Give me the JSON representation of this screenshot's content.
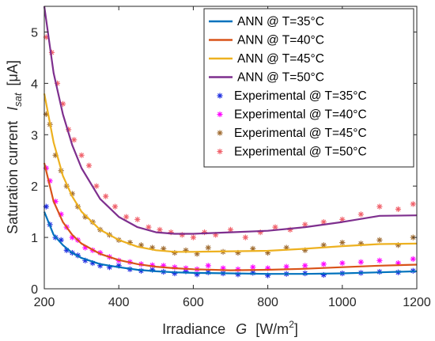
{
  "chart_data": {
    "type": "line",
    "xlabel": {
      "text": "Irradiance",
      "var": "G",
      "unit_pre": "[W/m",
      "unit_sup": "2",
      "unit_post": "]"
    },
    "ylabel": {
      "text": "Saturation current",
      "var": "I",
      "sub": "sat",
      "unit": "[μA]"
    },
    "xlim": [
      200,
      1200
    ],
    "ylim": [
      0,
      5.5
    ],
    "xticks": [
      "200",
      "400",
      "600",
      "800",
      "1000",
      "1200"
    ],
    "yticks": [
      "0",
      "1",
      "2",
      "3",
      "4",
      "5"
    ],
    "grid": false,
    "legend_position": "top-right",
    "series": [
      {
        "name": "ANN @ T=35°C",
        "kind": "line",
        "color": "#0072BD",
        "x": [
          200,
          225,
          250,
          275,
          300,
          350,
          400,
          450,
          500,
          550,
          600,
          700,
          800,
          900,
          1000,
          1100,
          1200
        ],
        "y": [
          1.5,
          1.05,
          0.85,
          0.7,
          0.6,
          0.48,
          0.42,
          0.37,
          0.34,
          0.32,
          0.31,
          0.3,
          0.29,
          0.29,
          0.3,
          0.32,
          0.34
        ]
      },
      {
        "name": "ANN @ T=40°C",
        "kind": "line",
        "color": "#D95319",
        "x": [
          200,
          225,
          250,
          275,
          300,
          350,
          400,
          450,
          500,
          550,
          600,
          700,
          800,
          900,
          1000,
          1100,
          1200
        ],
        "y": [
          2.45,
          1.7,
          1.3,
          1.05,
          0.88,
          0.68,
          0.56,
          0.48,
          0.43,
          0.4,
          0.38,
          0.36,
          0.37,
          0.39,
          0.42,
          0.45,
          0.47
        ]
      },
      {
        "name": "ANN @ T=45°C",
        "kind": "line",
        "color": "#EDB120",
        "x": [
          200,
          225,
          250,
          275,
          300,
          350,
          400,
          450,
          500,
          550,
          600,
          700,
          800,
          900,
          1000,
          1100,
          1200
        ],
        "y": [
          3.8,
          2.85,
          2.2,
          1.8,
          1.5,
          1.15,
          0.95,
          0.82,
          0.75,
          0.72,
          0.72,
          0.73,
          0.74,
          0.78,
          0.83,
          0.87,
          0.88
        ]
      },
      {
        "name": "ANN @ T=50°C",
        "kind": "line",
        "color": "#7E2F8E",
        "x": [
          200,
          225,
          250,
          275,
          300,
          350,
          400,
          450,
          500,
          550,
          600,
          700,
          800,
          900,
          1000,
          1100,
          1200
        ],
        "y": [
          5.5,
          4.2,
          3.4,
          2.8,
          2.35,
          1.75,
          1.4,
          1.2,
          1.1,
          1.07,
          1.07,
          1.1,
          1.13,
          1.2,
          1.3,
          1.42,
          1.43
        ]
      },
      {
        "name": "Experimental @ T=35°C",
        "kind": "scatter",
        "color": "#1A2BE0",
        "x": [
          205,
          215,
          230,
          245,
          260,
          275,
          290,
          310,
          330,
          350,
          375,
          400,
          430,
          460,
          490,
          520,
          550,
          580,
          610,
          640,
          680,
          720,
          760,
          800,
          850,
          900,
          950,
          1000,
          1050,
          1100,
          1150,
          1190
        ],
        "y": [
          1.6,
          1.25,
          1.0,
          0.95,
          0.75,
          0.7,
          0.65,
          0.55,
          0.5,
          0.45,
          0.42,
          0.45,
          0.38,
          0.35,
          0.37,
          0.33,
          0.3,
          0.34,
          0.28,
          0.32,
          0.3,
          0.28,
          0.31,
          0.26,
          0.29,
          0.3,
          0.27,
          0.3,
          0.31,
          0.33,
          0.32,
          0.35
        ]
      },
      {
        "name": "Experimental @ T=40°C",
        "kind": "scatter",
        "color": "#FF00FF",
        "x": [
          205,
          215,
          230,
          245,
          260,
          275,
          290,
          310,
          330,
          350,
          375,
          400,
          430,
          460,
          490,
          520,
          550,
          580,
          610,
          640,
          680,
          720,
          760,
          800,
          850,
          900,
          950,
          1000,
          1050,
          1100,
          1150,
          1190
        ],
        "y": [
          2.35,
          2.1,
          1.7,
          1.45,
          1.2,
          1.0,
          0.95,
          0.8,
          0.75,
          0.7,
          0.62,
          0.55,
          0.52,
          0.48,
          0.46,
          0.45,
          0.42,
          0.4,
          0.38,
          0.45,
          0.4,
          0.38,
          0.42,
          0.4,
          0.43,
          0.45,
          0.48,
          0.5,
          0.52,
          0.55,
          0.5,
          0.58
        ]
      },
      {
        "name": "Experimental @ T=45°C",
        "kind": "scatter",
        "color": "#9E6A2E",
        "x": [
          205,
          215,
          230,
          245,
          260,
          275,
          290,
          310,
          330,
          350,
          375,
          400,
          430,
          460,
          490,
          520,
          550,
          580,
          610,
          640,
          680,
          720,
          760,
          800,
          850,
          900,
          950,
          1000,
          1050,
          1100,
          1150,
          1190
        ],
        "y": [
          3.4,
          3.2,
          2.6,
          2.3,
          2.0,
          1.85,
          1.6,
          1.4,
          1.3,
          1.15,
          1.05,
          0.95,
          0.9,
          0.85,
          0.8,
          0.78,
          0.7,
          0.75,
          0.68,
          0.8,
          0.72,
          0.7,
          0.78,
          0.7,
          0.8,
          0.75,
          0.85,
          0.9,
          0.88,
          0.95,
          0.85,
          1.0
        ]
      },
      {
        "name": "Experimental @ T=50°C",
        "kind": "scatter",
        "color": "#F0606A",
        "x": [
          205,
          220,
          235,
          250,
          265,
          280,
          300,
          320,
          340,
          365,
          390,
          420,
          450,
          480,
          510,
          540,
          570,
          600,
          630,
          660,
          700,
          740,
          780,
          820,
          860,
          900,
          950,
          1000,
          1050,
          1100,
          1150,
          1190
        ],
        "y": [
          4.9,
          4.6,
          4.0,
          3.6,
          3.1,
          2.9,
          2.6,
          2.4,
          2.0,
          1.8,
          1.6,
          1.4,
          1.35,
          1.2,
          1.15,
          1.1,
          1.05,
          1.0,
          1.1,
          1.05,
          1.15,
          1.0,
          1.1,
          1.2,
          1.15,
          1.25,
          1.3,
          1.35,
          1.45,
          1.6,
          1.55,
          1.65
        ]
      }
    ]
  }
}
